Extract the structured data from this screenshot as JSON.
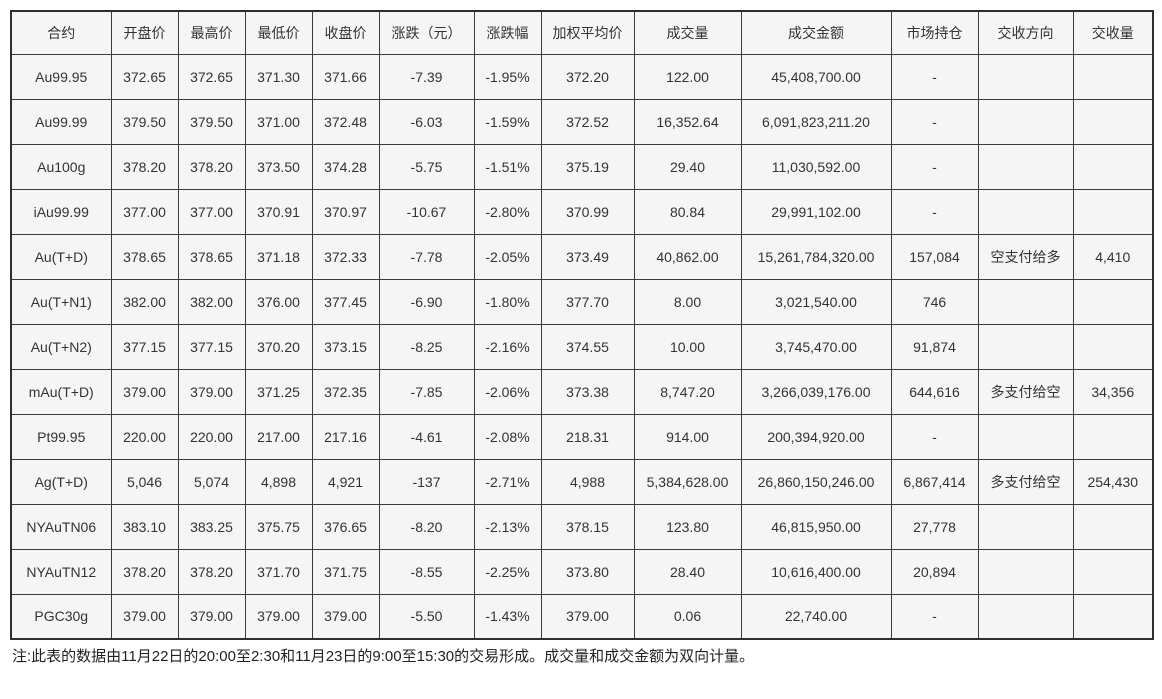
{
  "chart_data": {
    "type": "table",
    "title": "",
    "columns": [
      "合约",
      "开盘价",
      "最高价",
      "最低价",
      "收盘价",
      "涨跌（元）",
      "涨跌幅",
      "加权平均价",
      "成交量",
      "成交金额",
      "市场持仓",
      "交收方向",
      "交收量"
    ],
    "rows": [
      [
        "Au99.95",
        "372.65",
        "372.65",
        "371.30",
        "371.66",
        "-7.39",
        "-1.95%",
        "372.20",
        "122.00",
        "45,408,700.00",
        "-",
        "",
        ""
      ],
      [
        "Au99.99",
        "379.50",
        "379.50",
        "371.00",
        "372.48",
        "-6.03",
        "-1.59%",
        "372.52",
        "16,352.64",
        "6,091,823,211.20",
        "-",
        "",
        ""
      ],
      [
        "Au100g",
        "378.20",
        "378.20",
        "373.50",
        "374.28",
        "-5.75",
        "-1.51%",
        "375.19",
        "29.40",
        "11,030,592.00",
        "-",
        "",
        ""
      ],
      [
        "iAu99.99",
        "377.00",
        "377.00",
        "370.91",
        "370.97",
        "-10.67",
        "-2.80%",
        "370.99",
        "80.84",
        "29,991,102.00",
        "-",
        "",
        ""
      ],
      [
        "Au(T+D)",
        "378.65",
        "378.65",
        "371.18",
        "372.33",
        "-7.78",
        "-2.05%",
        "373.49",
        "40,862.00",
        "15,261,784,320.00",
        "157,084",
        "空支付给多",
        "4,410"
      ],
      [
        "Au(T+N1)",
        "382.00",
        "382.00",
        "376.00",
        "377.45",
        "-6.90",
        "-1.80%",
        "377.70",
        "8.00",
        "3,021,540.00",
        "746",
        "",
        ""
      ],
      [
        "Au(T+N2)",
        "377.15",
        "377.15",
        "370.20",
        "373.15",
        "-8.25",
        "-2.16%",
        "374.55",
        "10.00",
        "3,745,470.00",
        "91,874",
        "",
        ""
      ],
      [
        "mAu(T+D)",
        "379.00",
        "379.00",
        "371.25",
        "372.35",
        "-7.85",
        "-2.06%",
        "373.38",
        "8,747.20",
        "3,266,039,176.00",
        "644,616",
        "多支付给空",
        "34,356"
      ],
      [
        "Pt99.95",
        "220.00",
        "220.00",
        "217.00",
        "217.16",
        "-4.61",
        "-2.08%",
        "218.31",
        "914.00",
        "200,394,920.00",
        "-",
        "",
        ""
      ],
      [
        "Ag(T+D)",
        "5,046",
        "5,074",
        "4,898",
        "4,921",
        "-137",
        "-2.71%",
        "4,988",
        "5,384,628.00",
        "26,860,150,246.00",
        "6,867,414",
        "多支付给空",
        "254,430"
      ],
      [
        "NYAuTN06",
        "383.10",
        "383.25",
        "375.75",
        "376.65",
        "-8.20",
        "-2.13%",
        "378.15",
        "123.80",
        "46,815,950.00",
        "27,778",
        "",
        ""
      ],
      [
        "NYAuTN12",
        "378.20",
        "378.20",
        "371.70",
        "371.75",
        "-8.55",
        "-2.25%",
        "373.80",
        "28.40",
        "10,616,400.00",
        "20,894",
        "",
        ""
      ],
      [
        "PGC30g",
        "379.00",
        "379.00",
        "379.00",
        "379.00",
        "-5.50",
        "-1.43%",
        "379.00",
        "0.06",
        "22,740.00",
        "-",
        "",
        ""
      ]
    ],
    "annotations": [
      "注:此表的数据由11月22日的20:00至2:30和11月23日的9:00至15:30的交易形成。成交量和成交金额为双向计量。"
    ],
    "layout_hints": {
      "grid": "full-borders",
      "cell_alignment": "center"
    }
  },
  "footnote": "注:此表的数据由11月22日的20:00至2:30和11月23日的9:00至15:30的交易形成。成交量和成交金额为双向计量。",
  "colors": {
    "page_background": "#ffffff",
    "cell_background": "#f5f5f5",
    "border": "#3c3c3c",
    "outer_border": "#2f2f2f",
    "text": "#333333"
  }
}
